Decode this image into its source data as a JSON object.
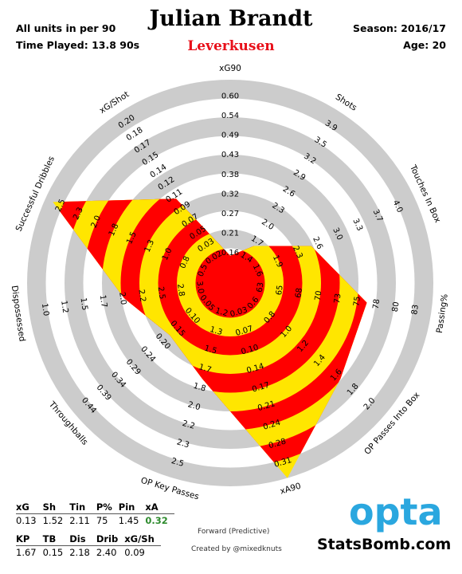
{
  "header": {
    "units_note": "All units in per 90",
    "time_played": "Time Played: 13.8 90s",
    "player": "Julian Brandt",
    "team": "Leverkusen",
    "season": "Season: 2016/17",
    "age": "Age: 20"
  },
  "chart_data": {
    "type": "radar",
    "rings": 10,
    "fill_colors": [
      "#ff0000",
      "#ffe600"
    ],
    "ring_color": "#cccccc",
    "axes": [
      {
        "label": "xG90",
        "ticks": [
          "0.16",
          "0.21",
          "0.27",
          "0.32",
          "0.38",
          "0.43",
          "0.49",
          "0.54",
          "0.60"
        ],
        "min": 0.1,
        "max": 0.6,
        "value": 0.13
      },
      {
        "label": "Shots",
        "ticks": [
          "1.4",
          "1.7",
          "2.0",
          "2.3",
          "2.6",
          "2.9",
          "3.2",
          "3.5",
          "3.9"
        ],
        "min": 1.1,
        "max": 3.9,
        "value": 1.52
      },
      {
        "label": "Touches In Box",
        "ticks": [
          "1.6",
          "1.9",
          "2.3",
          "2.6",
          "3.0",
          "3.3",
          "3.7",
          "4.0"
        ],
        "min": 0.9,
        "max": 4.0,
        "value": 2.11
      },
      {
        "label": "Passing%",
        "ticks": [
          "63",
          "65",
          "68",
          "70",
          "73",
          "75",
          "78",
          "80",
          "83"
        ],
        "min": 60.0,
        "max": 83.0,
        "value": 75
      },
      {
        "label": "OP Passes Into Box",
        "ticks": [
          "0.6",
          "0.8",
          "1.0",
          "1.2",
          "1.4",
          "1.6",
          "1.8",
          "2.0"
        ],
        "min": 0.2,
        "max": 2.0,
        "value": 1.45
      },
      {
        "label": "xA90",
        "ticks": [
          "0.03",
          "0.07",
          "0.10",
          "0.14",
          "0.17",
          "0.21",
          "0.24",
          "0.28",
          "0.31"
        ],
        "min": 0.0,
        "max": 0.31,
        "value": 0.32
      },
      {
        "label": "OP Key Passes",
        "ticks": [
          "1.2",
          "1.3",
          "1.5",
          "1.7",
          "1.8",
          "2.0",
          "2.2",
          "2.3",
          "2.5"
        ],
        "min": 1.0,
        "max": 2.5,
        "value": 1.67
      },
      {
        "label": "Throughballs",
        "ticks": [
          "0.05",
          "0.10",
          "0.15",
          "0.20",
          "0.24",
          "0.29",
          "0.34",
          "0.39",
          "0.44"
        ],
        "min": 0.0,
        "max": 0.44,
        "value": 0.15
      },
      {
        "label": "Dispossessed",
        "ticks": [
          "3.0",
          "2.8",
          "2.5",
          "2.2",
          "2.0",
          "1.7",
          "1.5",
          "1.2",
          "1.0"
        ],
        "min": 3.3,
        "max": 1.0,
        "value": 2.18
      },
      {
        "label": "Successful Dribbles",
        "ticks": [
          "0.5",
          "0.8",
          "1.0",
          "1.3",
          "1.5",
          "1.8",
          "2.0",
          "2.3",
          "2.5"
        ],
        "min": 0.2,
        "max": 2.5,
        "value": 2.4
      },
      {
        "label": "xG/Shot",
        "ticks": [
          "0.02",
          "0.03",
          "0.05",
          "0.07",
          "0.09",
          "0.11",
          "0.12",
          "0.14",
          "0.15",
          "0.17",
          "0.18",
          "0.20"
        ],
        "min": 0.0,
        "max": 0.2,
        "value": 0.09
      }
    ]
  },
  "stats_table": {
    "row1_headers": [
      "xG",
      "Sh",
      "Tin",
      "P%",
      "Pin",
      "xA"
    ],
    "row1_values": [
      "0.13",
      "1.52",
      "2.11",
      "75",
      "1.45",
      "0.32"
    ],
    "row2_headers": [
      "KP",
      "TB",
      "Dis",
      "Drib",
      "xG/Sh"
    ],
    "row2_values": [
      "1.67",
      "0.15",
      "2.18",
      "2.40",
      "0.09"
    ],
    "highlight_color": "#2e8b2e"
  },
  "footer": {
    "position": "Forward (Predictive)",
    "credit": "Created by @mixedknuts",
    "logo_text": "opta",
    "logo_color": "#2aa7df",
    "brand": "StatsBomb.com"
  }
}
